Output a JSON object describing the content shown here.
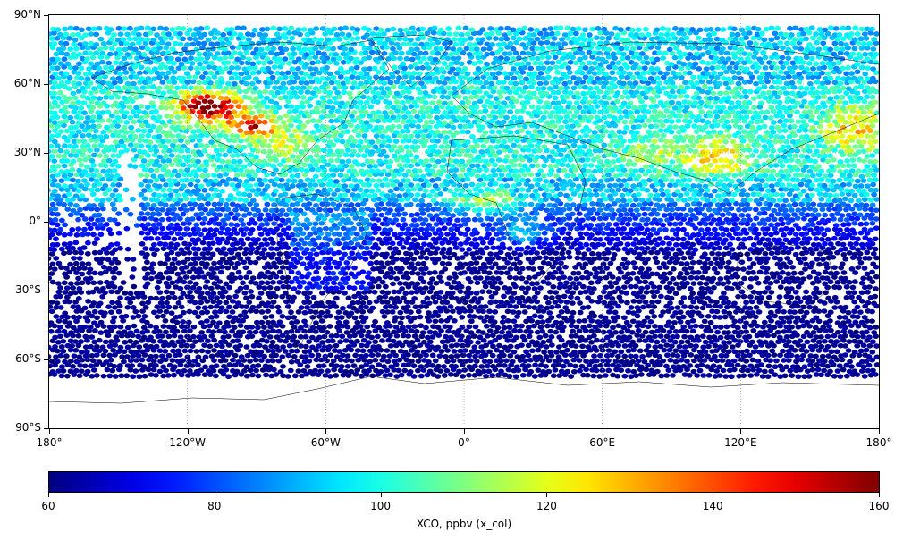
{
  "map": {
    "projection": "plate-carree",
    "gridlines": true,
    "lat_labels": [
      "90°N",
      "60°N",
      "30°N",
      "0°",
      "30°S",
      "60°S",
      "90°S"
    ],
    "lat_values": [
      90,
      60,
      30,
      0,
      -30,
      -60,
      -90
    ],
    "lon_labels": [
      "180°",
      "120°W",
      "60°W",
      "0°",
      "60°E",
      "120°E",
      "180°"
    ],
    "lon_values": [
      -180,
      -120,
      -60,
      0,
      60,
      120,
      180
    ],
    "data_lat_range": [
      -67,
      84
    ],
    "colors": {
      "low": "#00007f",
      "high": "#7f0000",
      "gap": "#ffffff"
    }
  },
  "colorbar": {
    "colormap": "jet",
    "vmin": 60,
    "vmax": 160,
    "tick_values": [
      60,
      80,
      100,
      120,
      140,
      160
    ],
    "tick_labels": [
      "60",
      "80",
      "100",
      "120",
      "140",
      "160"
    ],
    "label": "XCO, ppbv (x_col)"
  }
}
